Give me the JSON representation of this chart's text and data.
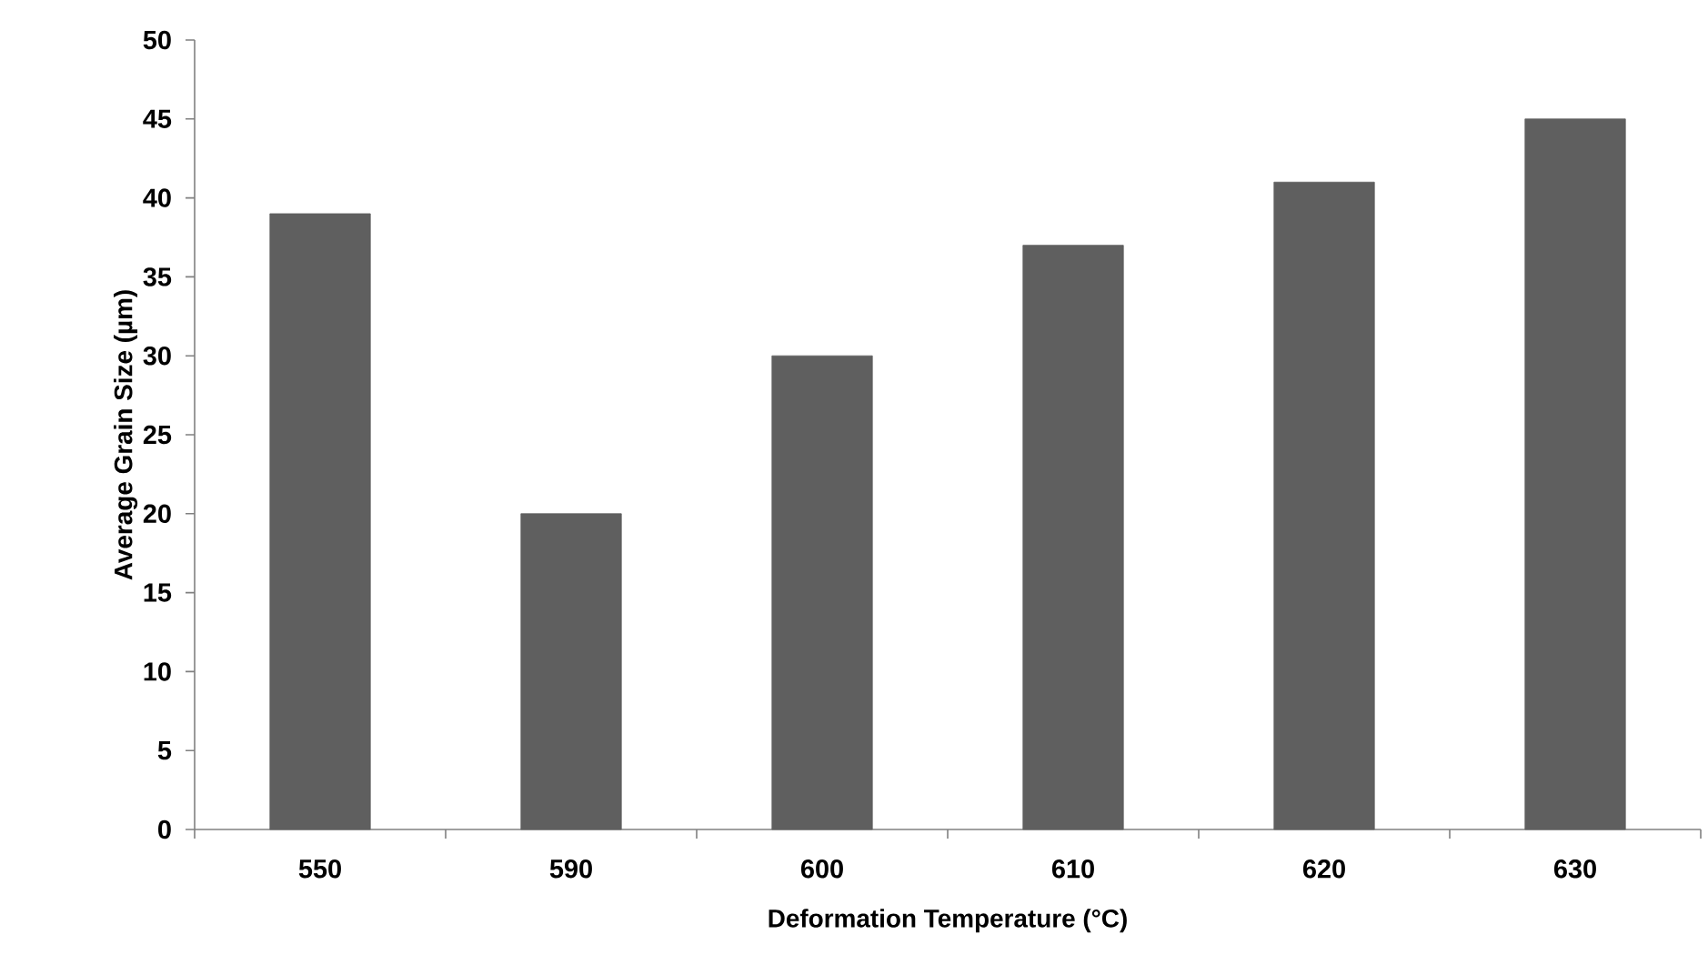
{
  "chart_data": {
    "type": "bar",
    "xlabel": "Deformation Temperature (°C)",
    "ylabel": "Average Grain Size (µm)",
    "categories": [
      "550",
      "590",
      "600",
      "610",
      "620",
      "630"
    ],
    "values": [
      39,
      20,
      30,
      37,
      41,
      45
    ],
    "color": "#5f5f5f",
    "ylim": [
      0,
      50
    ],
    "yticks": [
      0,
      5,
      10,
      15,
      20,
      25,
      30,
      35,
      40,
      45,
      50
    ]
  }
}
